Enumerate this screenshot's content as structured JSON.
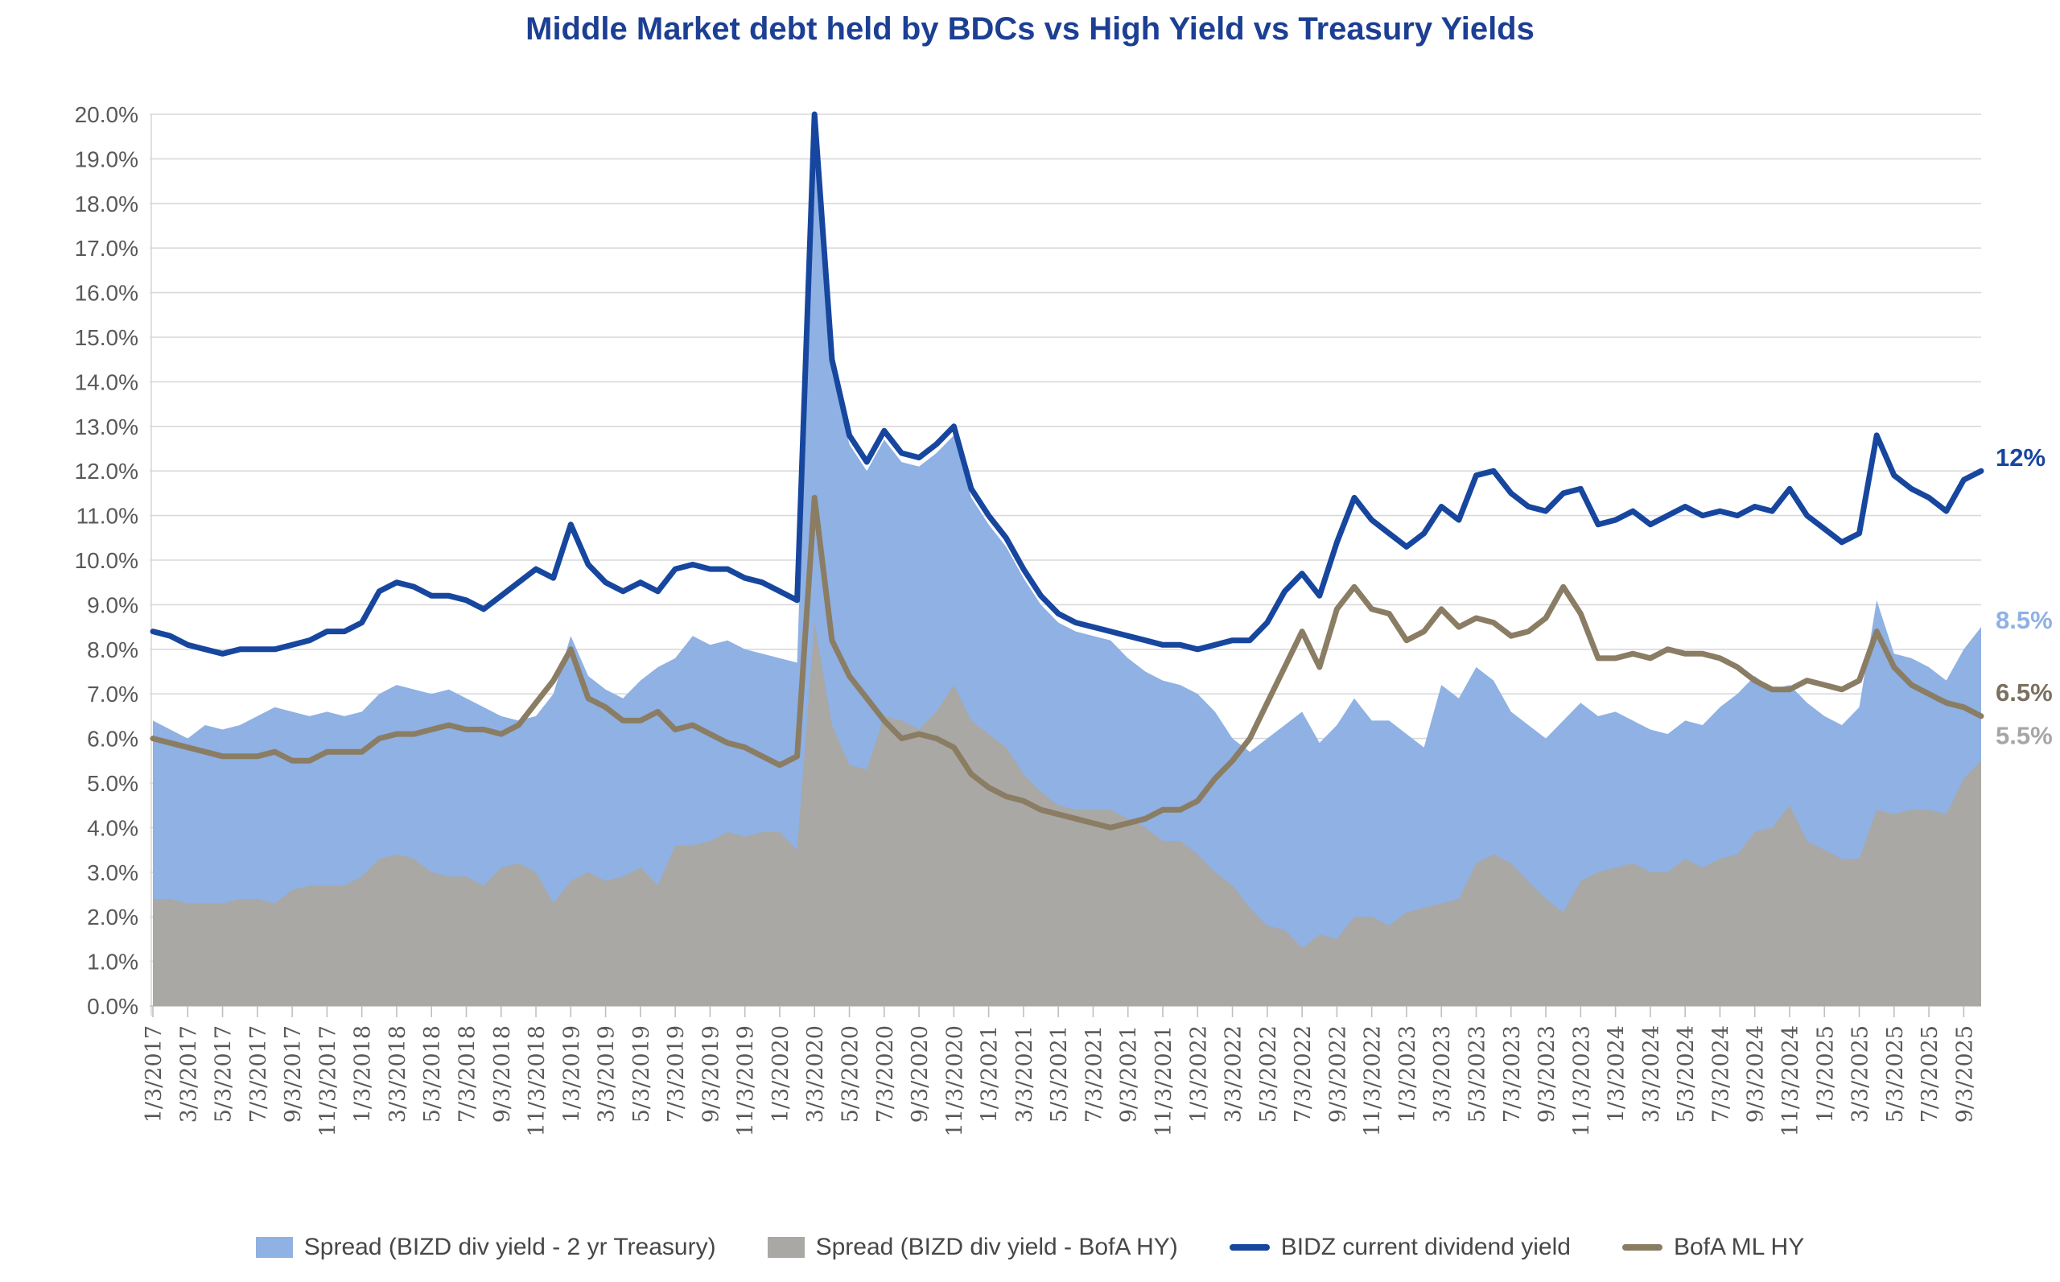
{
  "title": "Middle Market debt held by BDCs vs High Yield vs Treasury Yields",
  "colors": {
    "title": "#1c3f94",
    "gridline": "#d9d9d9",
    "axis": "#bfbfbf",
    "tick_label": "#595959",
    "legend_text": "#474747",
    "background": "#ffffff"
  },
  "chart_data": {
    "type": "area",
    "title": "Middle Market debt held by BDCs vs High Yield vs Treasury Yields",
    "xlabel": "",
    "ylabel": "",
    "ylim": [
      0,
      20
    ],
    "y_step": 1,
    "grid": "horizontal",
    "legend_position": "bottom",
    "y_tick_labels": [
      "0.0%",
      "1.0%",
      "2.0%",
      "3.0%",
      "4.0%",
      "5.0%",
      "6.0%",
      "7.0%",
      "8.0%",
      "9.0%",
      "10.0%",
      "11.0%",
      "12.0%",
      "13.0%",
      "14.0%",
      "15.0%",
      "16.0%",
      "17.0%",
      "18.0%",
      "19.0%",
      "20.0%"
    ],
    "x_tick_labels": [
      "1/3/2017",
      "3/3/2017",
      "5/3/2017",
      "7/3/2017",
      "9/3/2017",
      "11/3/2017",
      "1/3/2018",
      "3/3/2018",
      "5/3/2018",
      "7/3/2018",
      "9/3/2018",
      "11/3/2018",
      "1/3/2019",
      "3/3/2019",
      "5/3/2019",
      "7/3/2019",
      "9/3/2019",
      "11/3/2019",
      "1/3/2020",
      "3/3/2020",
      "5/3/2020",
      "7/3/2020",
      "9/3/2020",
      "11/3/2020",
      "1/3/2021",
      "3/3/2021",
      "5/3/2021",
      "7/3/2021",
      "9/3/2021",
      "11/3/2021",
      "1/3/2022",
      "3/3/2022",
      "5/3/2022",
      "7/3/2022",
      "9/3/2022",
      "11/3/2022",
      "1/3/2023",
      "3/3/2023",
      "5/3/2023",
      "7/3/2023",
      "9/3/2023",
      "11/3/2023",
      "1/3/2024",
      "3/3/2024",
      "5/3/2024",
      "7/3/2024",
      "9/3/2024",
      "11/3/2024",
      "1/3/2025",
      "3/3/2025",
      "5/3/2025",
      "7/3/2025",
      "9/3/2025"
    ],
    "x_note": "weekly data shown; series digitized monthly Jan 2017 - Oct 2025, labels every 2 months",
    "series": [
      {
        "name": "Spread (BIZD div yield - 2 yr Treasury)",
        "type": "area",
        "color": "#8fb1e3",
        "values": [
          6.4,
          6.2,
          6.0,
          6.3,
          6.2,
          6.3,
          6.5,
          6.7,
          6.6,
          6.5,
          6.6,
          6.5,
          6.6,
          7.0,
          7.2,
          7.1,
          7.0,
          7.1,
          6.9,
          6.7,
          6.5,
          6.4,
          6.5,
          7.0,
          8.3,
          7.4,
          7.1,
          6.9,
          7.3,
          7.6,
          7.8,
          8.3,
          8.1,
          8.2,
          8.0,
          7.9,
          7.8,
          7.7,
          19.4,
          14.2,
          12.6,
          12.0,
          12.7,
          12.2,
          12.1,
          12.4,
          12.8,
          11.4,
          10.8,
          10.3,
          9.6,
          9.0,
          8.6,
          8.4,
          8.3,
          8.2,
          7.8,
          7.5,
          7.3,
          7.2,
          7.0,
          6.6,
          6.0,
          5.7,
          6.0,
          6.3,
          6.6,
          5.9,
          6.3,
          6.9,
          6.4,
          6.4,
          6.1,
          5.8,
          7.2,
          6.9,
          7.6,
          7.3,
          6.6,
          6.3,
          6.0,
          6.4,
          6.8,
          6.5,
          6.6,
          6.4,
          6.2,
          6.1,
          6.4,
          6.3,
          6.7,
          7.0,
          7.4,
          7.1,
          7.2,
          6.8,
          6.5,
          6.3,
          6.7,
          9.1,
          7.9,
          7.8,
          7.6,
          7.3,
          8.0,
          8.5
        ]
      },
      {
        "name": "Spread (BIZD div yield - BofA HY)",
        "type": "area",
        "color": "#a9a8a4",
        "values": [
          2.4,
          2.4,
          2.3,
          2.3,
          2.3,
          2.4,
          2.4,
          2.3,
          2.6,
          2.7,
          2.7,
          2.7,
          2.9,
          3.3,
          3.4,
          3.3,
          3.0,
          2.9,
          2.9,
          2.7,
          3.1,
          3.2,
          3.0,
          2.3,
          2.8,
          3.0,
          2.8,
          2.9,
          3.1,
          2.7,
          3.6,
          3.6,
          3.7,
          3.9,
          3.8,
          3.9,
          3.9,
          3.5,
          8.6,
          6.3,
          5.4,
          5.3,
          6.5,
          6.4,
          6.2,
          6.6,
          7.2,
          6.4,
          6.1,
          5.8,
          5.2,
          4.8,
          4.5,
          4.4,
          4.4,
          4.4,
          4.2,
          4.0,
          3.7,
          3.7,
          3.4,
          3.0,
          2.7,
          2.2,
          1.8,
          1.7,
          1.3,
          1.6,
          1.5,
          2.0,
          2.0,
          1.8,
          2.1,
          2.2,
          2.3,
          2.4,
          3.2,
          3.4,
          3.2,
          2.8,
          2.4,
          2.1,
          2.8,
          3.0,
          3.1,
          3.2,
          3.0,
          3.0,
          3.3,
          3.1,
          3.3,
          3.4,
          3.9,
          4.0,
          4.5,
          3.7,
          3.5,
          3.3,
          3.3,
          4.4,
          4.3,
          4.4,
          4.4,
          4.3,
          5.1,
          5.5
        ]
      },
      {
        "name": "BIDZ current dividend yield",
        "type": "line",
        "color": "#17469e",
        "values": [
          8.4,
          8.3,
          8.1,
          8.0,
          7.9,
          8.0,
          8.0,
          8.0,
          8.1,
          8.2,
          8.4,
          8.4,
          8.6,
          9.3,
          9.5,
          9.4,
          9.2,
          9.2,
          9.1,
          8.9,
          9.2,
          9.5,
          9.8,
          9.6,
          10.8,
          9.9,
          9.5,
          9.3,
          9.5,
          9.3,
          9.8,
          9.9,
          9.8,
          9.8,
          9.6,
          9.5,
          9.3,
          9.1,
          20.0,
          14.5,
          12.8,
          12.2,
          12.9,
          12.4,
          12.3,
          12.6,
          13.0,
          11.6,
          11.0,
          10.5,
          9.8,
          9.2,
          8.8,
          8.6,
          8.5,
          8.4,
          8.3,
          8.2,
          8.1,
          8.1,
          8.0,
          8.1,
          8.2,
          8.2,
          8.6,
          9.3,
          9.7,
          9.2,
          10.4,
          11.4,
          10.9,
          10.6,
          10.3,
          10.6,
          11.2,
          10.9,
          11.9,
          12.0,
          11.5,
          11.2,
          11.1,
          11.5,
          11.6,
          10.8,
          10.9,
          11.1,
          10.8,
          11.0,
          11.2,
          11.0,
          11.1,
          11.0,
          11.2,
          11.1,
          11.6,
          11.0,
          10.7,
          10.4,
          10.6,
          12.8,
          11.9,
          11.6,
          11.4,
          11.1,
          11.8,
          12.0
        ]
      },
      {
        "name": "BofA ML HY",
        "type": "line",
        "color": "#8a7d64",
        "values": [
          6.0,
          5.9,
          5.8,
          5.7,
          5.6,
          5.6,
          5.6,
          5.7,
          5.5,
          5.5,
          5.7,
          5.7,
          5.7,
          6.0,
          6.1,
          6.1,
          6.2,
          6.3,
          6.2,
          6.2,
          6.1,
          6.3,
          6.8,
          7.3,
          8.0,
          6.9,
          6.7,
          6.4,
          6.4,
          6.6,
          6.2,
          6.3,
          6.1,
          5.9,
          5.8,
          5.6,
          5.4,
          5.6,
          11.4,
          8.2,
          7.4,
          6.9,
          6.4,
          6.0,
          6.1,
          6.0,
          5.8,
          5.2,
          4.9,
          4.7,
          4.6,
          4.4,
          4.3,
          4.2,
          4.1,
          4.0,
          4.1,
          4.2,
          4.4,
          4.4,
          4.6,
          5.1,
          5.5,
          6.0,
          6.8,
          7.6,
          8.4,
          7.6,
          8.9,
          9.4,
          8.9,
          8.8,
          8.2,
          8.4,
          8.9,
          8.5,
          8.7,
          8.6,
          8.3,
          8.4,
          8.7,
          9.4,
          8.8,
          7.8,
          7.8,
          7.9,
          7.8,
          8.0,
          7.9,
          7.9,
          7.8,
          7.6,
          7.3,
          7.1,
          7.1,
          7.3,
          7.2,
          7.1,
          7.3,
          8.4,
          7.6,
          7.2,
          7.0,
          6.8,
          6.7,
          6.5
        ]
      }
    ],
    "end_labels": [
      {
        "text": "12%",
        "value": 12.0,
        "color": "#17469e"
      },
      {
        "text": "8.5%",
        "value": 8.5,
        "color": "#8fb1e3"
      },
      {
        "text": "6.5%",
        "value": 6.5,
        "color": "#7a7060"
      },
      {
        "text": "5.5%",
        "value": 5.5,
        "color": "#a6a6a6"
      }
    ]
  }
}
